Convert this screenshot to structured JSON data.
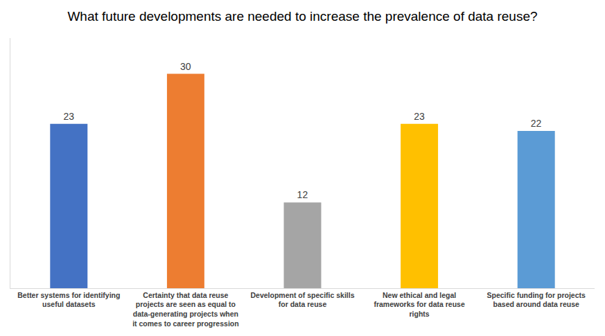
{
  "chart_data": {
    "type": "bar",
    "title": "What future developments are needed to increase the prevalence of data reuse?",
    "categories": [
      "Better systems for identifying useful datasets",
      "Certainty that data reuse projects are seen as equal to data-generating projects when it comes to career progression",
      "Development of specific skills for data reuse",
      "New ethical and legal frameworks for data reuse rights",
      "Specific funding for projects based around data reuse"
    ],
    "values": [
      23,
      30,
      12,
      23,
      22
    ],
    "colors": [
      "#4472c4",
      "#ed7d31",
      "#a5a5a5",
      "#ffc000",
      "#5b9bd5"
    ],
    "ylim": [
      0,
      35
    ],
    "grid": false,
    "data_labels": true,
    "tick_labels": "x"
  }
}
